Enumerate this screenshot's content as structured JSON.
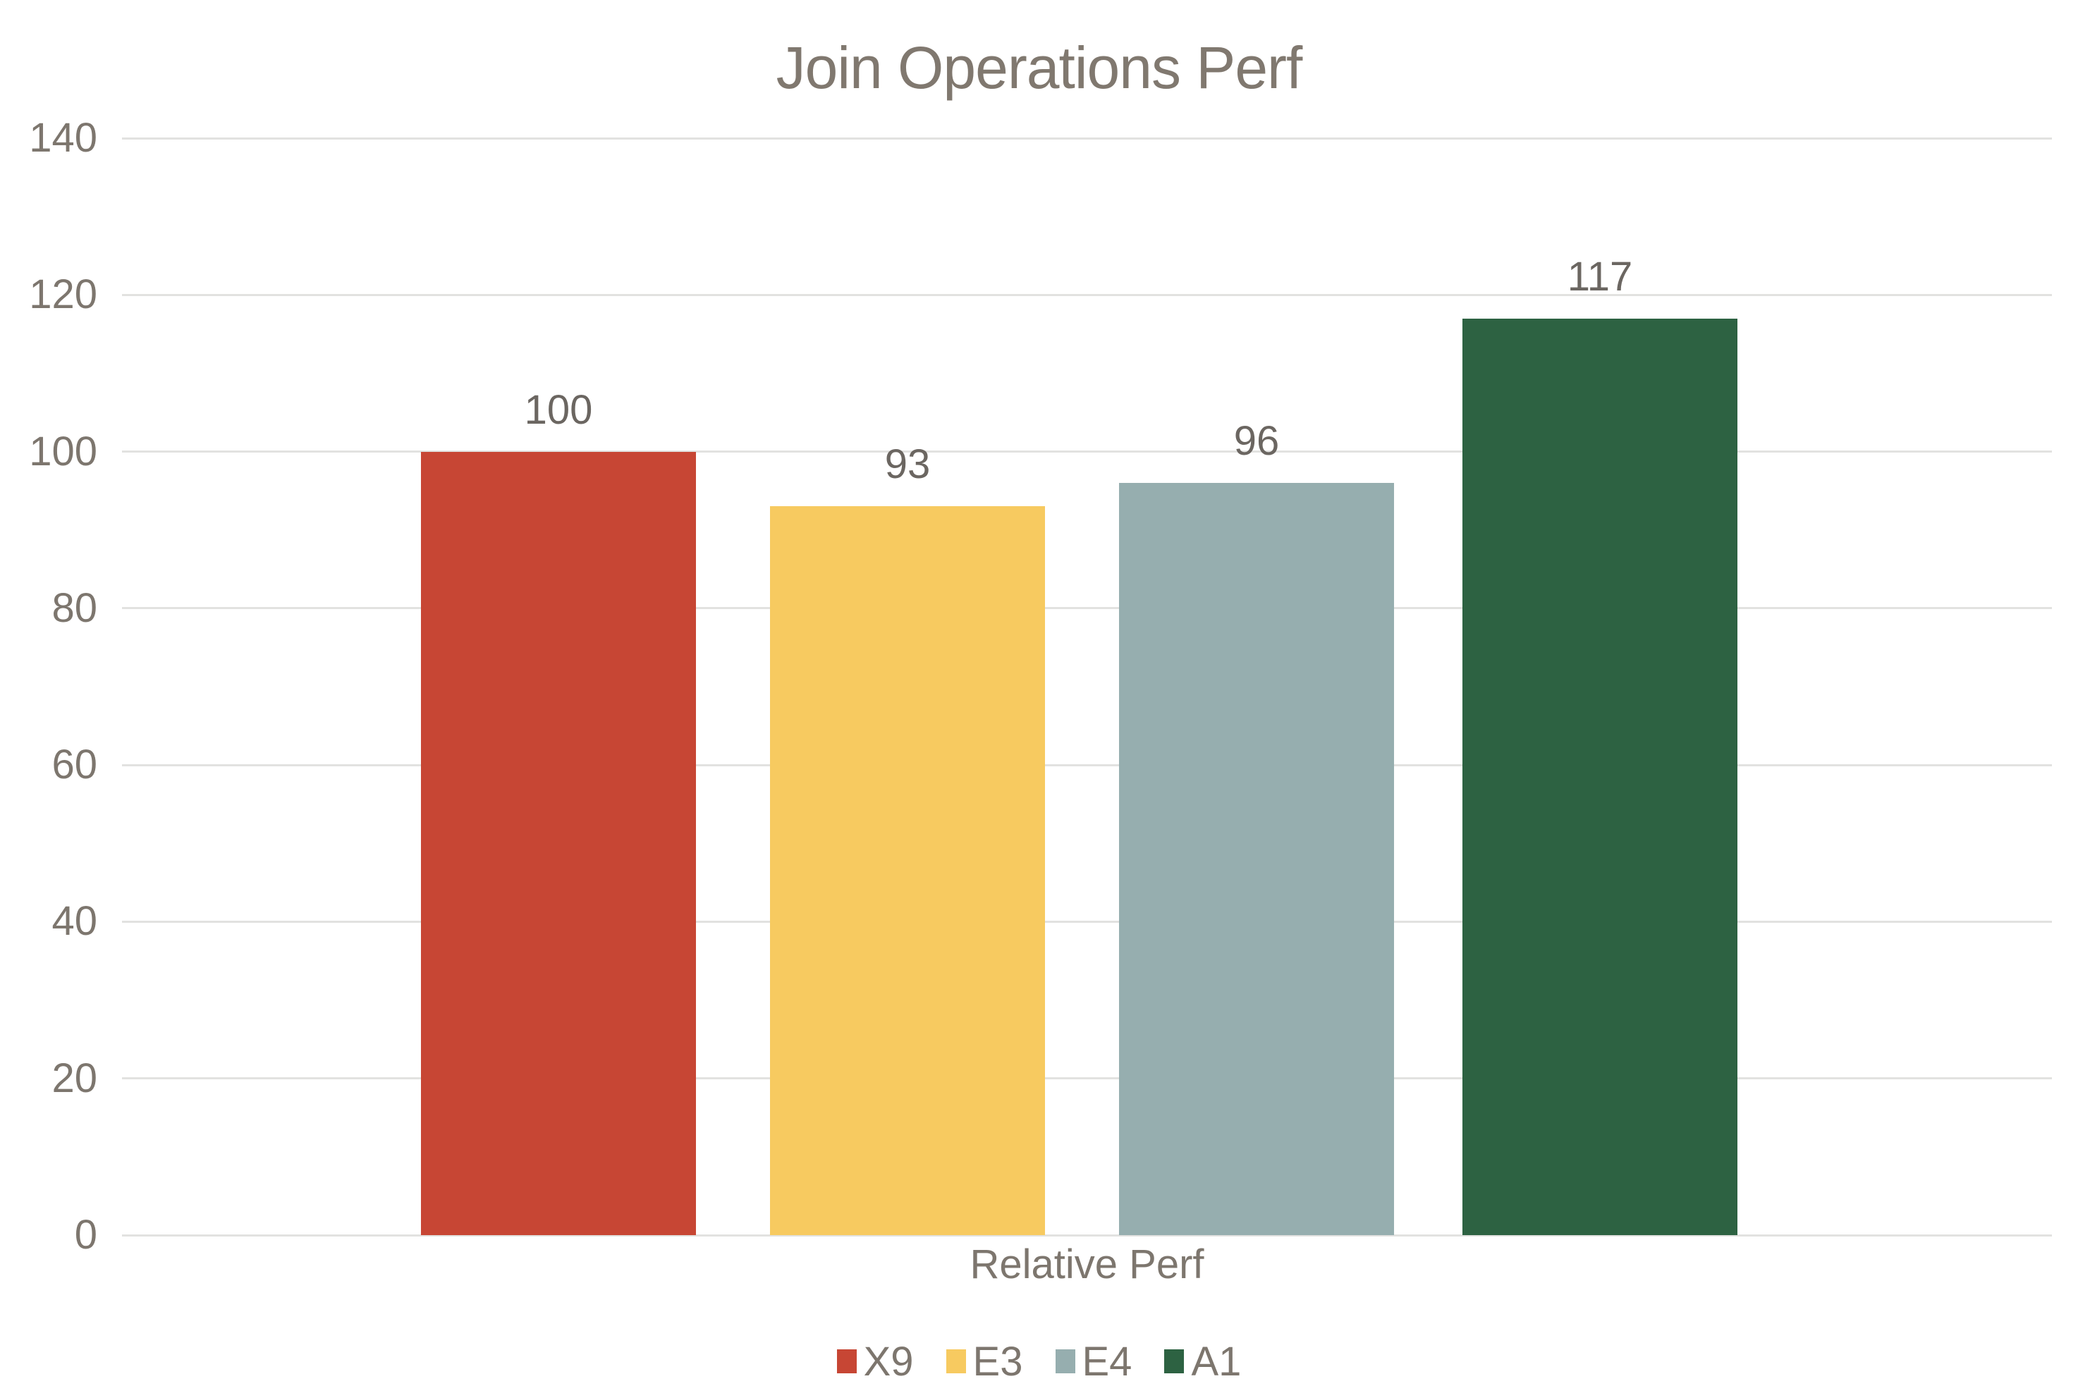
{
  "chart_data": {
    "type": "bar",
    "title": "Join Operations Perf",
    "categories": [
      "Relative Perf"
    ],
    "series": [
      {
        "name": "X9",
        "values": [
          100
        ],
        "color": "#C74634"
      },
      {
        "name": "E3",
        "values": [
          93
        ],
        "color": "#F7CA60"
      },
      {
        "name": "E4",
        "values": [
          96
        ],
        "color": "#96AEAF"
      },
      {
        "name": "A1",
        "values": [
          117
        ],
        "color": "#2D6242"
      }
    ],
    "xlabel": "Relative Perf",
    "ylabel": "",
    "ylim": [
      0,
      140
    ],
    "yticks": [
      0,
      20,
      40,
      60,
      80,
      100,
      120,
      140
    ],
    "grid": true,
    "legend_position": "bottom"
  },
  "colors": {
    "background": "#FFFFFF",
    "gridline": "#E2E2E0",
    "title_text": "#80786F",
    "axis_text": "#7D766E",
    "data_label_text": "#6B6661",
    "legend_text": "#7D766E"
  }
}
